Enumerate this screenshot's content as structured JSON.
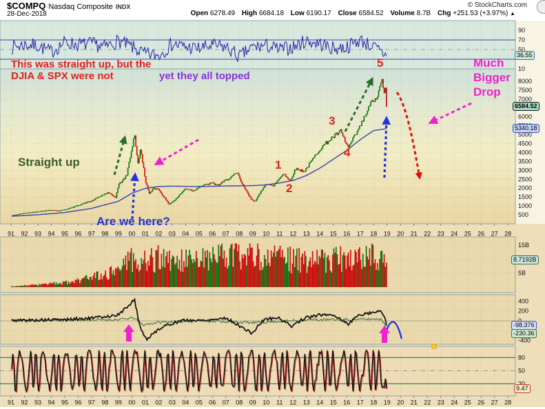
{
  "header": {
    "symbol": "$COMPQ",
    "name": "Nasdaq Composite",
    "exchange": "INDX",
    "copyright": "© StockCharts.com",
    "date": "28-Dec-2018",
    "quote": {
      "open": {
        "label": "Open",
        "value": "6278.49"
      },
      "high": {
        "label": "High",
        "value": "6684.18"
      },
      "low": {
        "label": "Low",
        "value": "6190.17"
      },
      "close": {
        "label": "Close",
        "value": "6584.52"
      },
      "volume": {
        "label": "Volume",
        "value": "8.7B"
      },
      "chg": {
        "label": "Chg",
        "value": "+251.53 (+3.97%)",
        "arrow": "▲"
      }
    }
  },
  "annotations": {
    "red_line1": "This was straight up, but the",
    "red_line2": "DJIA & SPX were not",
    "purple_line": "yet they all topped",
    "much_bigger_drop": "Much\nBigger\nDrop",
    "straight_up": "Straight up",
    "are_we_here": "Are we here?",
    "wave_1": "1",
    "wave_2": "2",
    "wave_3": "3",
    "wave_4": "4",
    "wave_5": "5"
  },
  "value_labels": {
    "rsi": "36.55",
    "price": "6584.52",
    "ma": "5340.18",
    "volume": "8.7192B",
    "macd": "-98.376",
    "macd_signal": "-230.36",
    "stoch": "9.47"
  },
  "axis": {
    "years": [
      "91",
      "92",
      "93",
      "94",
      "95",
      "96",
      "97",
      "98",
      "99",
      "00",
      "01",
      "02",
      "03",
      "04",
      "05",
      "06",
      "07",
      "08",
      "09",
      "10",
      "11",
      "12",
      "13",
      "14",
      "15",
      "16",
      "17",
      "18",
      "19",
      "20",
      "21",
      "22",
      "23",
      "24",
      "25",
      "26",
      "27",
      "28"
    ]
  },
  "colors": {
    "bar_up": "#0a7a0a",
    "bar_down": "#cc1111",
    "ma_line": "#3344aa",
    "rsi_line": "#2222aa",
    "macd_line": "#151515",
    "macd_signal": "#4a7a4a",
    "stoch_line": "#151515",
    "stoch_line2": "#bb2222",
    "annotation_red": "#e02020",
    "annotation_purple": "#8833d6",
    "annotation_magenta": "#ee22cc",
    "annotation_green": "#2d6a2d",
    "annotation_blue": "#2233dd"
  },
  "chart_data": [
    {
      "id": "rsi",
      "type": "line",
      "name": "RSI top oscillator",
      "ylim": [
        0,
        100
      ],
      "ticks": [
        90,
        70,
        50,
        10
      ],
      "overbought": 70,
      "mid": 50,
      "oversold": 30,
      "current": 36.55,
      "anchors": [
        [
          1991,
          55
        ],
        [
          1992,
          60
        ],
        [
          1993,
          58
        ],
        [
          1994,
          45
        ],
        [
          1995,
          65
        ],
        [
          1996,
          60
        ],
        [
          1997,
          62
        ],
        [
          1998,
          55
        ],
        [
          1999,
          68
        ],
        [
          2000,
          55
        ],
        [
          2001,
          40
        ],
        [
          2002,
          38
        ],
        [
          2003,
          62
        ],
        [
          2004,
          55
        ],
        [
          2005,
          52
        ],
        [
          2006,
          58
        ],
        [
          2007,
          55
        ],
        [
          2008,
          35
        ],
        [
          2009,
          55
        ],
        [
          2010,
          58
        ],
        [
          2011,
          50
        ],
        [
          2012,
          55
        ],
        [
          2013,
          68
        ],
        [
          2014,
          62
        ],
        [
          2015,
          52
        ],
        [
          2016,
          55
        ],
        [
          2017,
          70
        ],
        [
          2018,
          55
        ],
        [
          2018.97,
          36.55
        ]
      ]
    },
    {
      "id": "price",
      "type": "bar-line",
      "name": "$COMPQ monthly price",
      "x_range_years": [
        1991,
        2028
      ],
      "ylim": [
        250,
        8450
      ],
      "ticks": [
        8000,
        7500,
        7000,
        6000,
        5500,
        5000,
        4500,
        4000,
        3500,
        3000,
        2500,
        2000,
        1500,
        1000,
        500
      ],
      "close": 6584.52,
      "ma_value": 5340.18,
      "anchors": [
        [
          1991,
          460
        ],
        [
          1991.9,
          590
        ],
        [
          1993,
          690
        ],
        [
          1994,
          780
        ],
        [
          1994.6,
          735
        ],
        [
          1995.5,
          900
        ],
        [
          1996,
          1050
        ],
        [
          1996.6,
          1200
        ],
        [
          1997,
          1290
        ],
        [
          1997.8,
          1620
        ],
        [
          1998.2,
          1750
        ],
        [
          1998.8,
          1500
        ],
        [
          1999,
          2190
        ],
        [
          1999.6,
          2700
        ],
        [
          2000.2,
          5050
        ],
        [
          2000.45,
          3320
        ],
        [
          2000.65,
          4230
        ],
        [
          2001.0,
          2470
        ],
        [
          2001.3,
          1650
        ],
        [
          2001.6,
          2030
        ],
        [
          2002.0,
          1940
        ],
        [
          2002.75,
          1110
        ],
        [
          2003.2,
          1340
        ],
        [
          2004.0,
          2000
        ],
        [
          2004.6,
          1860
        ],
        [
          2005,
          2100
        ],
        [
          2006,
          2300
        ],
        [
          2006.4,
          2170
        ],
        [
          2007,
          2460
        ],
        [
          2007.85,
          2860
        ],
        [
          2008.2,
          2260
        ],
        [
          2008.85,
          1420
        ],
        [
          2009.2,
          1270
        ],
        [
          2009.95,
          2270
        ],
        [
          2010.5,
          2110
        ],
        [
          2011.3,
          2860
        ],
        [
          2011.75,
          2400
        ],
        [
          2012.2,
          3100
        ],
        [
          2012.85,
          2960
        ],
        [
          2013.95,
          4170
        ],
        [
          2014.75,
          4750
        ],
        [
          2015.55,
          5200
        ],
        [
          2016.1,
          4270
        ],
        [
          2016.95,
          5400
        ],
        [
          2017.95,
          7000
        ],
        [
          2018.15,
          6870
        ],
        [
          2018.65,
          8110
        ],
        [
          2018.82,
          7050
        ],
        [
          2018.88,
          7550
        ],
        [
          2018.97,
          6584.52
        ]
      ],
      "ma_anchors": [
        [
          1991,
          420
        ],
        [
          1993,
          505
        ],
        [
          1995,
          630
        ],
        [
          1997,
          860
        ],
        [
          1999,
          1260
        ],
        [
          2000,
          1710
        ],
        [
          2001,
          1990
        ],
        [
          2002,
          2090
        ],
        [
          2003,
          2110
        ],
        [
          2005,
          2085
        ],
        [
          2007,
          2120
        ],
        [
          2009,
          2140
        ],
        [
          2010,
          2180
        ],
        [
          2011,
          2290
        ],
        [
          2012,
          2430
        ],
        [
          2013,
          2710
        ],
        [
          2014,
          3120
        ],
        [
          2015,
          3620
        ],
        [
          2016,
          4120
        ],
        [
          2017,
          4720
        ],
        [
          2018,
          5230
        ],
        [
          2018.97,
          5340.18
        ]
      ]
    },
    {
      "id": "volume",
      "type": "bar",
      "name": "Volume (billions)",
      "ylim": [
        0,
        16.5
      ],
      "ticks_b": [
        15,
        10,
        5
      ],
      "current_b": 8.7192,
      "anchors": [
        [
          1991,
          0.35
        ],
        [
          1993,
          0.8
        ],
        [
          1995,
          1.6
        ],
        [
          1997,
          3.2
        ],
        [
          1998,
          4.5
        ],
        [
          1999,
          6.5
        ],
        [
          2000,
          9.5
        ],
        [
          2001,
          10.5
        ],
        [
          2002,
          10
        ],
        [
          2003,
          9
        ],
        [
          2004,
          9.5
        ],
        [
          2005,
          10
        ],
        [
          2006,
          10.5
        ],
        [
          2007,
          11
        ],
        [
          2008,
          12.5
        ],
        [
          2009,
          11.5
        ],
        [
          2010,
          11.5
        ],
        [
          2011,
          10.5
        ],
        [
          2012,
          9.5
        ],
        [
          2013,
          9.5
        ],
        [
          2014,
          10
        ],
        [
          2015,
          10
        ],
        [
          2016,
          10.5
        ],
        [
          2017,
          9.5
        ],
        [
          2018,
          10.5
        ],
        [
          2018.97,
          8.7192
        ]
      ]
    },
    {
      "id": "macd",
      "type": "line",
      "name": "MACD-style oscillator",
      "ylim": [
        -450,
        480
      ],
      "ticks": [
        400,
        200,
        0,
        -200,
        -400
      ],
      "current_line": -98.376,
      "current_signal": -230.36,
      "anchors": [
        [
          1991,
          8
        ],
        [
          1993,
          15
        ],
        [
          1995,
          25
        ],
        [
          1997,
          55
        ],
        [
          1999,
          120
        ],
        [
          2000.2,
          430
        ],
        [
          2000.6,
          -120
        ],
        [
          2001.1,
          -380
        ],
        [
          2002,
          -160
        ],
        [
          2003,
          -50
        ],
        [
          2004,
          15
        ],
        [
          2005,
          5
        ],
        [
          2006,
          30
        ],
        [
          2007,
          60
        ],
        [
          2008,
          -100
        ],
        [
          2008.95,
          -255
        ],
        [
          2009.6,
          -40
        ],
        [
          2010,
          45
        ],
        [
          2011,
          55
        ],
        [
          2011.85,
          -110
        ],
        [
          2012.3,
          -30
        ],
        [
          2013,
          65
        ],
        [
          2014,
          120
        ],
        [
          2015,
          125
        ],
        [
          2016.15,
          -70
        ],
        [
          2016.6,
          60
        ],
        [
          2017,
          130
        ],
        [
          2018,
          175
        ],
        [
          2018.55,
          205
        ],
        [
          2018.8,
          90
        ],
        [
          2018.97,
          -98.376
        ]
      ],
      "signal_anchors": [
        [
          1991,
          5
        ],
        [
          1999,
          25
        ],
        [
          2000.2,
          60
        ],
        [
          2000.8,
          -80
        ],
        [
          2001.3,
          -60
        ],
        [
          2002,
          -30
        ],
        [
          2005,
          5
        ],
        [
          2008,
          -25
        ],
        [
          2009,
          -40
        ],
        [
          2013,
          20
        ],
        [
          2017,
          30
        ],
        [
          2018.5,
          40
        ],
        [
          2018.8,
          -40
        ],
        [
          2018.97,
          -230.36
        ]
      ]
    },
    {
      "id": "stoch",
      "type": "line",
      "name": "Fast stochastic bottom oscillator",
      "ylim": [
        0,
        100
      ],
      "ticks": [
        80,
        50,
        20
      ],
      "upper": 80,
      "mid": 50,
      "lower": 20,
      "current": 9.47,
      "osc_period_months": 7,
      "osc_amplitude": 46
    }
  ]
}
